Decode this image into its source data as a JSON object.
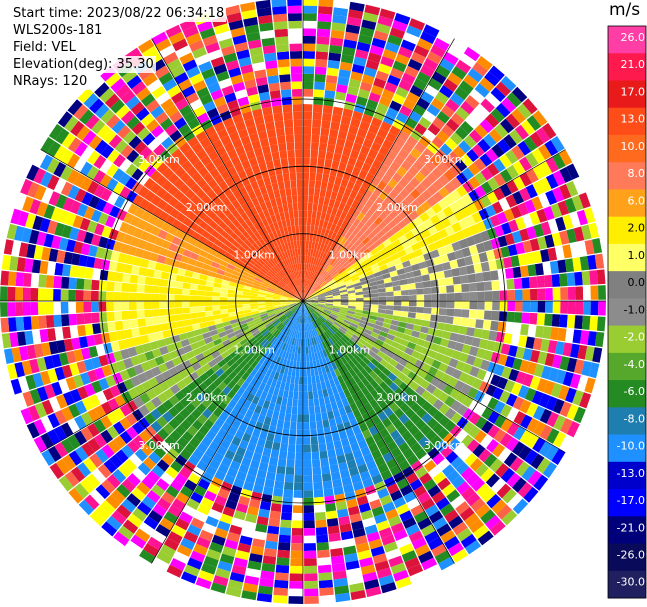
{
  "header": {
    "start_time": "Start time: 2023/08/22 06:34:18",
    "instrument": "WLS200s-181",
    "field": "Field: VEL",
    "elevation": "Elevation(deg): 35.30",
    "nrays": "NRays: 120"
  },
  "chart_data": {
    "type": "heatmap",
    "projection": "polar PPI",
    "title": "",
    "field": "VEL",
    "units": "m/s",
    "nrays": 120,
    "elevation_deg": 35.3,
    "range_rings_km": [
      1.0,
      2.0,
      3.0
    ],
    "ring_labels": [
      "1.00km",
      "2.00km",
      "3.00km"
    ],
    "max_range_km": 4.5,
    "radial_lines": 12,
    "grid": true,
    "colorbar": {
      "label": "m/s",
      "placement": "right",
      "ticks": [
        "26.0",
        "21.0",
        "17.0",
        "13.0",
        "10.0",
        "8.0",
        "6.0",
        "2.0",
        "1.0",
        "0.0",
        "-1.0",
        "-2.0",
        "-4.0",
        "-6.0",
        "-8.0",
        "-10.0",
        "-13.0",
        "-17.0",
        "-21.0",
        "-26.0",
        "-30.0"
      ],
      "colors": [
        "#ff3fa5",
        "#ff1a4d",
        "#e81a1a",
        "#ff4d1a",
        "#ff6a1f",
        "#ff7a59",
        "#ffa21a",
        "#ffee00",
        "#ffff66",
        "#808080",
        "#8c8c8c",
        "#9acd32",
        "#55a82b",
        "#238b22",
        "#1e7eb0",
        "#1e90ff",
        "#0000cd",
        "#0000ff",
        "#00007a",
        "#0a0a5a",
        "#202060"
      ]
    },
    "valid_range_km": 2.9,
    "noise_palette": [
      "#ff1493",
      "#0000ff",
      "#ffff00",
      "#ff8c00",
      "#000080",
      "#228b22",
      "#ff00ff",
      "#dc143c",
      "#9acd32",
      "#1e90ff",
      "#ff6347",
      "#ffffff"
    ],
    "velocity_sectors_deg_cw_from_north": [
      {
        "from": 300,
        "to": 360,
        "velocity": 13.0
      },
      {
        "from": 0,
        "to": 30,
        "velocity": 13.0
      },
      {
        "from": 30,
        "to": 55,
        "velocity": 8.0
      },
      {
        "from": 55,
        "to": 70,
        "velocity": 2.0
      },
      {
        "from": 70,
        "to": 100,
        "velocity": 0.0
      },
      {
        "from": 100,
        "to": 130,
        "velocity": -2.0
      },
      {
        "from": 130,
        "to": 155,
        "velocity": -6.0
      },
      {
        "from": 155,
        "to": 215,
        "velocity": -10.0
      },
      {
        "from": 215,
        "to": 235,
        "velocity": -6.0
      },
      {
        "from": 235,
        "to": 255,
        "velocity": -2.0
      },
      {
        "from": 255,
        "to": 285,
        "velocity": 2.0
      },
      {
        "from": 285,
        "to": 300,
        "velocity": 6.0
      }
    ]
  }
}
